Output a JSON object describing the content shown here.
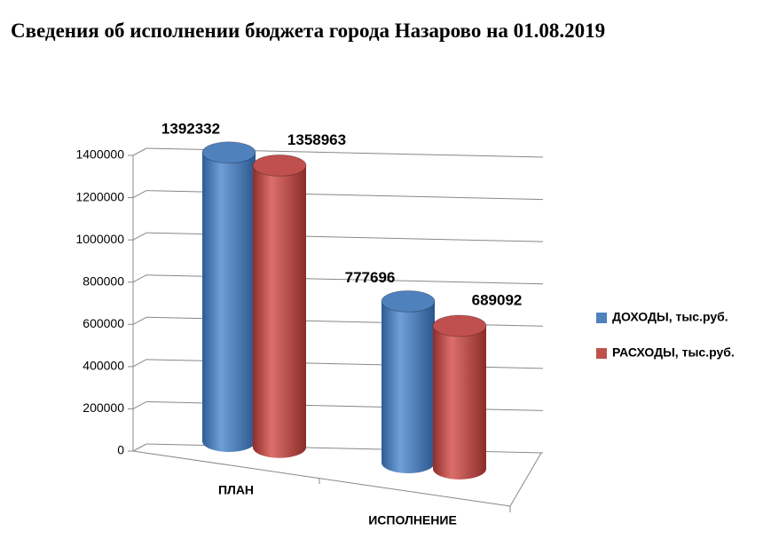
{
  "chart_data": {
    "type": "bar3d",
    "title": "Сведения об исполнении бюджета города Назарово на 01.08.2019",
    "categories": [
      "ПЛАН",
      "ИСПОЛНЕНИЕ"
    ],
    "series": [
      {
        "name": "ДОХОДЫ, тыс.руб.",
        "color": "#4f81bd",
        "values": [
          1392332,
          777696
        ]
      },
      {
        "name": "РАСХОДЫ, тыс.руб.",
        "color": "#c0504d",
        "values": [
          1358963,
          689092
        ]
      }
    ],
    "ylim": [
      0,
      1400000
    ],
    "yticks": [
      0,
      200000,
      400000,
      600000,
      800000,
      1000000,
      1200000,
      1400000
    ],
    "grid": true,
    "legend": "right"
  }
}
